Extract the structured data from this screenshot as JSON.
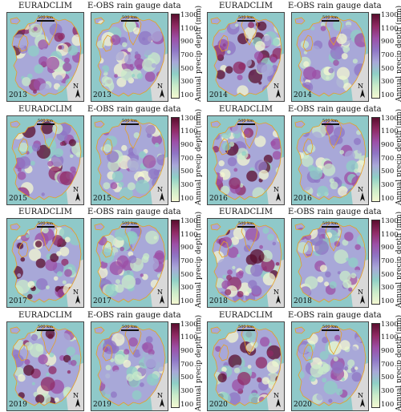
{
  "panel_titles": {
    "left": "EURADCLIM",
    "right": "E-OBS rain gauge data"
  },
  "scale_label": "500 km",
  "north_label": "N",
  "years": [
    "2013",
    "2014",
    "2015",
    "2016",
    "2017",
    "2018",
    "2019",
    "2020"
  ],
  "colorbar": {
    "label": "Annual precip depth (mm)",
    "ticks": [
      "1300",
      "1100",
      "900",
      "700",
      "500",
      "300",
      "100"
    ],
    "min": 100,
    "max": 1300,
    "colors": [
      "#f4f8d2",
      "#c9ebc9",
      "#8fd0c6",
      "#a8a8d8",
      "#8f75c4",
      "#9c4fa6",
      "#8f2a64",
      "#5a0e2e"
    ]
  },
  "colors": {
    "sea": "#8fc9c9",
    "outside": "#d9d9d9",
    "coast": "#e8a020"
  }
}
